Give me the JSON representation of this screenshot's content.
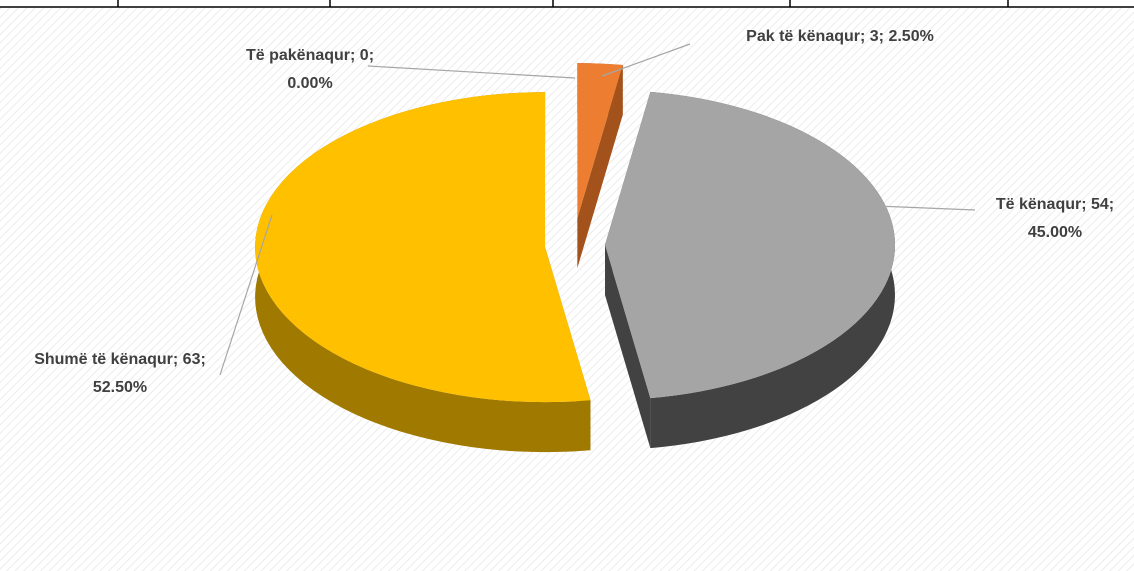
{
  "chart_data": {
    "type": "pie3d",
    "values": [
      0,
      3,
      54,
      63
    ],
    "value_labels": [
      "Të pakënaqur; 0; 0.00%",
      "Pak të kënaqur; 3; 2.50%",
      "Të kënaqur; 54; 45.00%",
      "Shumë të kënaqur; 63; 52.50%"
    ],
    "colors": [
      "#5b9bd5",
      "#ed7d31",
      "#a5a5a5",
      "#ffc000"
    ],
    "side_colors": [
      "#2e5a85",
      "#a3521c",
      "#424242",
      "#a07a00"
    ]
  }
}
